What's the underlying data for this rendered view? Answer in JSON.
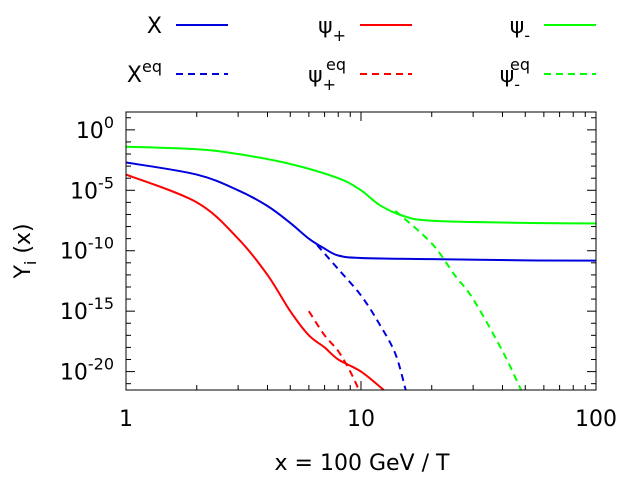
{
  "chart_data": {
    "type": "line",
    "xlabel": "x = 100 GeV / T",
    "ylabel": {
      "main": "Y",
      "sub": "i",
      "tail": " (x)"
    },
    "x_scale": "log",
    "y_scale": "log",
    "xlim": [
      1,
      100
    ],
    "ylim": [
      3e-22,
      30.0
    ],
    "x_ticks": [
      {
        "value": 1,
        "label": "1"
      },
      {
        "value": 10,
        "label": "10"
      },
      {
        "value": 100,
        "label": "100"
      }
    ],
    "y_ticks": [
      {
        "value": 1,
        "base": "10",
        "exp": "0"
      },
      {
        "value": 1e-05,
        "base": "10",
        "exp": "-5"
      },
      {
        "value": 1e-10,
        "base": "10",
        "exp": "-10"
      },
      {
        "value": 1e-15,
        "base": "10",
        "exp": "-15"
      },
      {
        "value": 1e-20,
        "base": "10",
        "exp": "-20"
      }
    ],
    "grid": false,
    "legend_position": "top, outside plot (3 columns × 2 rows)",
    "series": [
      {
        "id": "X",
        "name": "X",
        "name_sub": "",
        "name_sup": "",
        "color": "#0000dd",
        "dash": "solid",
        "points": [
          [
            1,
            0.002
          ],
          [
            2,
            0.0002
          ],
          [
            3,
            1e-05
          ],
          [
            4,
            5e-07
          ],
          [
            5,
            2e-08
          ],
          [
            6,
            1e-09
          ],
          [
            7,
            1.5e-10
          ],
          [
            8,
            4e-11
          ],
          [
            10,
            2.5e-11
          ],
          [
            20,
            2e-11
          ],
          [
            50,
            1.6e-11
          ],
          [
            100,
            1.5e-11
          ]
        ]
      },
      {
        "id": "Xeq",
        "name": "X",
        "name_sub": "",
        "name_sup": "eq",
        "color": "#0000dd",
        "dash": "dashed",
        "points": [
          [
            6.5,
            3e-10
          ],
          [
            8,
            3e-12
          ],
          [
            10,
            2e-14
          ],
          [
            12,
            8e-17
          ],
          [
            14,
            3e-19
          ],
          [
            15.5,
            3e-22
          ]
        ]
      },
      {
        "id": "psi_plus",
        "name": "ψ",
        "name_sub": "+",
        "name_sup": "",
        "color": "#ff0000",
        "dash": "solid",
        "points": [
          [
            1,
            0.0002
          ],
          [
            2,
            1e-06
          ],
          [
            3,
            1e-09
          ],
          [
            4,
            1e-12
          ],
          [
            5,
            1e-15
          ],
          [
            6,
            1e-17
          ],
          [
            7,
            1e-18
          ],
          [
            8,
            1e-19
          ],
          [
            10,
            1e-20
          ],
          [
            12.5,
            3e-22
          ]
        ]
      },
      {
        "id": "psi_plus_eq",
        "name": "ψ",
        "name_sub": "+",
        "name_sup": "eq",
        "color": "#ff0000",
        "dash": "dashed",
        "points": [
          [
            6,
            1e-15
          ],
          [
            7,
            1e-17
          ],
          [
            8,
            5e-19
          ],
          [
            9,
            1e-20
          ],
          [
            9.8,
            3e-22
          ]
        ]
      },
      {
        "id": "psi_minus",
        "name": "ψ",
        "name_sub": "-",
        "name_sup": "",
        "color": "#00ff00",
        "dash": "solid",
        "points": [
          [
            1,
            0.04
          ],
          [
            2,
            0.025
          ],
          [
            3,
            0.01
          ],
          [
            5,
            0.0015
          ],
          [
            8,
            0.0001
          ],
          [
            10,
            1e-05
          ],
          [
            12,
            6e-07
          ],
          [
            15,
            8e-08
          ],
          [
            20,
            3e-08
          ],
          [
            50,
            2e-08
          ],
          [
            100,
            1.8e-08
          ]
        ]
      },
      {
        "id": "psi_minus_eq",
        "name": "ψ",
        "name_sub": "-",
        "name_sup": "eq",
        "color": "#00ff00",
        "dash": "dashed",
        "points": [
          [
            14,
            2e-07
          ],
          [
            20,
            4e-10
          ],
          [
            25,
            1e-12
          ],
          [
            30,
            1e-14
          ],
          [
            40,
            5e-19
          ],
          [
            48,
            3e-22
          ]
        ]
      }
    ]
  }
}
